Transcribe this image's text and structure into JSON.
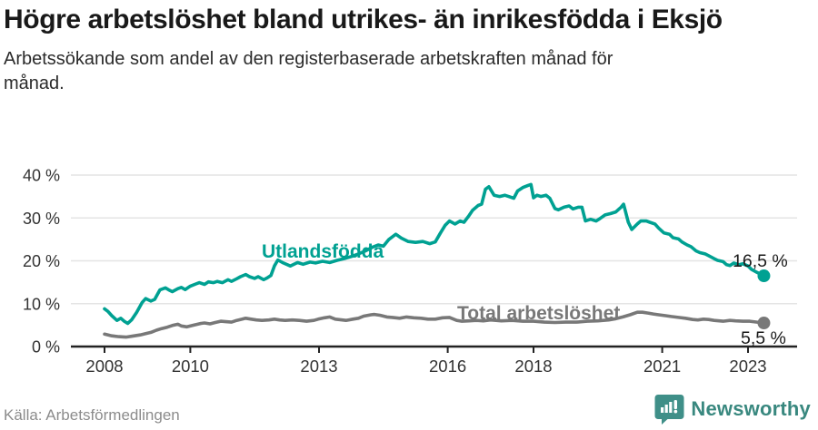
{
  "header": {
    "title": "Högre arbetslöshet bland utrikes- än inrikesfödda i Eksjö",
    "subtitle": "Arbetssökande som andel av den registerbaserade arbetskraften månad för månad."
  },
  "footer": {
    "source": "Källa: Arbetsförmedlingen",
    "brand": "Newsworthy"
  },
  "colors": {
    "accent_teal": "#00a192",
    "line_gray": "#787878",
    "grid": "#e4e4e4",
    "axis": "#222222",
    "tick_label": "#333333",
    "annotation": "#1a1a1a",
    "logo_teal": "#3f8f88"
  },
  "chart_data": {
    "type": "line",
    "title": "Högre arbetslöshet bland utrikes- än inrikesfödda i Eksjö",
    "subtitle": "Arbetssökande som andel av den registerbaserade arbetskraften månad för månad.",
    "source": "Källa: Arbetsförmedlingen",
    "xlabel": "",
    "ylabel": "",
    "grid": true,
    "legend_position": "inline-labels",
    "ylim": [
      0,
      40
    ],
    "xlim": [
      2007.2,
      2024.2
    ],
    "y_ticks": [
      {
        "value": 0,
        "label": "0 %"
      },
      {
        "value": 10,
        "label": "10 %"
      },
      {
        "value": 20,
        "label": "20 %"
      },
      {
        "value": 30,
        "label": "30 %"
      },
      {
        "value": 40,
        "label": "40 %"
      }
    ],
    "x_ticks": [
      {
        "value": 2008,
        "label": "2008"
      },
      {
        "value": 2010,
        "label": "2010"
      },
      {
        "value": 2013,
        "label": "2013"
      },
      {
        "value": 2016,
        "label": "2016"
      },
      {
        "value": 2018,
        "label": "2018"
      },
      {
        "value": 2021,
        "label": "2021"
      },
      {
        "value": 2023,
        "label": "2023"
      }
    ],
    "series": [
      {
        "name": "Utlandsfödda",
        "color": "#00a192",
        "end_label": "16,5 %",
        "end_value": 16.5,
        "points": [
          [
            2008.0,
            8.8
          ],
          [
            2008.08,
            8.2
          ],
          [
            2008.17,
            7.2
          ],
          [
            2008.29,
            6.1
          ],
          [
            2008.38,
            6.6
          ],
          [
            2008.46,
            5.9
          ],
          [
            2008.54,
            5.4
          ],
          [
            2008.63,
            6.2
          ],
          [
            2008.75,
            8.0
          ],
          [
            2008.88,
            10.3
          ],
          [
            2008.96,
            11.2
          ],
          [
            2009.08,
            10.6
          ],
          [
            2009.17,
            11.0
          ],
          [
            2009.29,
            13.2
          ],
          [
            2009.42,
            13.7
          ],
          [
            2009.5,
            13.2
          ],
          [
            2009.58,
            12.8
          ],
          [
            2009.71,
            13.5
          ],
          [
            2009.79,
            13.8
          ],
          [
            2009.88,
            13.3
          ],
          [
            2010.0,
            14.1
          ],
          [
            2010.13,
            14.6
          ],
          [
            2010.21,
            14.9
          ],
          [
            2010.33,
            14.5
          ],
          [
            2010.42,
            15.1
          ],
          [
            2010.54,
            14.9
          ],
          [
            2010.63,
            15.2
          ],
          [
            2010.75,
            14.9
          ],
          [
            2010.88,
            15.6
          ],
          [
            2010.96,
            15.2
          ],
          [
            2011.08,
            15.8
          ],
          [
            2011.17,
            16.3
          ],
          [
            2011.29,
            16.8
          ],
          [
            2011.38,
            16.3
          ],
          [
            2011.5,
            15.9
          ],
          [
            2011.58,
            16.3
          ],
          [
            2011.71,
            15.6
          ],
          [
            2011.79,
            16.0
          ],
          [
            2011.88,
            16.6
          ],
          [
            2011.96,
            18.8
          ],
          [
            2012.04,
            20.2
          ],
          [
            2012.17,
            19.5
          ],
          [
            2012.33,
            18.8
          ],
          [
            2012.5,
            19.6
          ],
          [
            2012.63,
            19.2
          ],
          [
            2012.79,
            19.7
          ],
          [
            2012.92,
            19.5
          ],
          [
            2013.08,
            19.9
          ],
          [
            2013.25,
            19.6
          ],
          [
            2013.42,
            20.1
          ],
          [
            2013.58,
            20.5
          ],
          [
            2013.75,
            21.0
          ],
          [
            2013.92,
            21.6
          ],
          [
            2014.08,
            22.3
          ],
          [
            2014.25,
            23.2
          ],
          [
            2014.38,
            23.7
          ],
          [
            2014.5,
            23.4
          ],
          [
            2014.63,
            25.0
          ],
          [
            2014.79,
            26.2
          ],
          [
            2014.92,
            25.3
          ],
          [
            2015.08,
            24.5
          ],
          [
            2015.25,
            24.3
          ],
          [
            2015.42,
            24.5
          ],
          [
            2015.58,
            24.0
          ],
          [
            2015.71,
            24.4
          ],
          [
            2015.83,
            26.5
          ],
          [
            2015.94,
            28.3
          ],
          [
            2016.04,
            29.3
          ],
          [
            2016.17,
            28.6
          ],
          [
            2016.29,
            29.3
          ],
          [
            2016.38,
            29.0
          ],
          [
            2016.5,
            30.6
          ],
          [
            2016.58,
            31.8
          ],
          [
            2016.71,
            32.9
          ],
          [
            2016.79,
            33.2
          ],
          [
            2016.88,
            36.7
          ],
          [
            2016.96,
            37.3
          ],
          [
            2017.08,
            35.3
          ],
          [
            2017.21,
            35.0
          ],
          [
            2017.33,
            35.3
          ],
          [
            2017.42,
            35.0
          ],
          [
            2017.54,
            34.6
          ],
          [
            2017.63,
            36.3
          ],
          [
            2017.75,
            37.1
          ],
          [
            2017.88,
            37.6
          ],
          [
            2017.94,
            37.8
          ],
          [
            2018.0,
            34.7
          ],
          [
            2018.08,
            35.3
          ],
          [
            2018.17,
            35.0
          ],
          [
            2018.29,
            35.3
          ],
          [
            2018.38,
            34.6
          ],
          [
            2018.5,
            32.2
          ],
          [
            2018.58,
            31.9
          ],
          [
            2018.71,
            32.5
          ],
          [
            2018.83,
            32.8
          ],
          [
            2018.92,
            32.1
          ],
          [
            2019.04,
            32.5
          ],
          [
            2019.13,
            32.5
          ],
          [
            2019.21,
            29.3
          ],
          [
            2019.33,
            29.7
          ],
          [
            2019.46,
            29.3
          ],
          [
            2019.54,
            29.8
          ],
          [
            2019.67,
            30.7
          ],
          [
            2019.79,
            31.0
          ],
          [
            2019.92,
            31.4
          ],
          [
            2020.04,
            32.5
          ],
          [
            2020.1,
            33.2
          ],
          [
            2020.21,
            29.0
          ],
          [
            2020.29,
            27.3
          ],
          [
            2020.42,
            28.6
          ],
          [
            2020.5,
            29.3
          ],
          [
            2020.63,
            29.3
          ],
          [
            2020.71,
            29.0
          ],
          [
            2020.83,
            28.6
          ],
          [
            2020.92,
            27.6
          ],
          [
            2021.04,
            26.5
          ],
          [
            2021.17,
            26.2
          ],
          [
            2021.25,
            25.4
          ],
          [
            2021.38,
            25.1
          ],
          [
            2021.46,
            24.4
          ],
          [
            2021.58,
            23.7
          ],
          [
            2021.67,
            23.3
          ],
          [
            2021.79,
            22.3
          ],
          [
            2021.88,
            21.9
          ],
          [
            2022.0,
            21.6
          ],
          [
            2022.08,
            21.2
          ],
          [
            2022.21,
            20.5
          ],
          [
            2022.29,
            20.1
          ],
          [
            2022.42,
            19.8
          ],
          [
            2022.5,
            19.1
          ],
          [
            2022.58,
            18.9
          ],
          [
            2022.67,
            19.5
          ],
          [
            2022.79,
            19.1
          ],
          [
            2022.88,
            19.3
          ],
          [
            2023.0,
            18.8
          ],
          [
            2023.08,
            18.0
          ],
          [
            2023.21,
            17.3
          ],
          [
            2023.37,
            16.5
          ]
        ]
      },
      {
        "name": "Total arbetslöshet",
        "color": "#787878",
        "end_label": "5,5 %",
        "end_value": 5.5,
        "points": [
          [
            2008.0,
            2.9
          ],
          [
            2008.17,
            2.5
          ],
          [
            2008.33,
            2.3
          ],
          [
            2008.5,
            2.2
          ],
          [
            2008.63,
            2.4
          ],
          [
            2008.83,
            2.7
          ],
          [
            2008.96,
            3.0
          ],
          [
            2009.08,
            3.3
          ],
          [
            2009.21,
            3.8
          ],
          [
            2009.33,
            4.2
          ],
          [
            2009.46,
            4.5
          ],
          [
            2009.58,
            4.9
          ],
          [
            2009.71,
            5.2
          ],
          [
            2009.79,
            4.8
          ],
          [
            2009.92,
            4.6
          ],
          [
            2010.08,
            5.0
          ],
          [
            2010.25,
            5.4
          ],
          [
            2010.33,
            5.5
          ],
          [
            2010.46,
            5.3
          ],
          [
            2010.58,
            5.6
          ],
          [
            2010.71,
            5.9
          ],
          [
            2010.83,
            5.8
          ],
          [
            2010.96,
            5.7
          ],
          [
            2011.08,
            6.1
          ],
          [
            2011.21,
            6.4
          ],
          [
            2011.29,
            6.6
          ],
          [
            2011.42,
            6.4
          ],
          [
            2011.54,
            6.2
          ],
          [
            2011.67,
            6.1
          ],
          [
            2011.83,
            6.2
          ],
          [
            2011.96,
            6.4
          ],
          [
            2012.08,
            6.2
          ],
          [
            2012.21,
            6.1
          ],
          [
            2012.38,
            6.2
          ],
          [
            2012.54,
            6.1
          ],
          [
            2012.71,
            5.9
          ],
          [
            2012.88,
            6.1
          ],
          [
            2012.98,
            6.4
          ],
          [
            2013.13,
            6.7
          ],
          [
            2013.25,
            6.9
          ],
          [
            2013.38,
            6.4
          ],
          [
            2013.54,
            6.2
          ],
          [
            2013.63,
            6.1
          ],
          [
            2013.79,
            6.4
          ],
          [
            2013.92,
            6.6
          ],
          [
            2014.04,
            7.1
          ],
          [
            2014.21,
            7.4
          ],
          [
            2014.29,
            7.5
          ],
          [
            2014.42,
            7.3
          ],
          [
            2014.58,
            6.9
          ],
          [
            2014.71,
            6.8
          ],
          [
            2014.88,
            6.6
          ],
          [
            2015.04,
            6.9
          ],
          [
            2015.21,
            6.7
          ],
          [
            2015.38,
            6.6
          ],
          [
            2015.54,
            6.4
          ],
          [
            2015.71,
            6.4
          ],
          [
            2015.88,
            6.7
          ],
          [
            2016.04,
            6.8
          ],
          [
            2016.21,
            6.1
          ],
          [
            2016.33,
            5.9
          ],
          [
            2016.5,
            6.0
          ],
          [
            2016.67,
            6.1
          ],
          [
            2016.83,
            6.0
          ],
          [
            2017.0,
            6.2
          ],
          [
            2017.25,
            6.0
          ],
          [
            2017.5,
            6.1
          ],
          [
            2017.75,
            5.9
          ],
          [
            2018.0,
            5.9
          ],
          [
            2018.25,
            5.7
          ],
          [
            2018.5,
            5.6
          ],
          [
            2018.75,
            5.7
          ],
          [
            2019.0,
            5.7
          ],
          [
            2019.25,
            5.9
          ],
          [
            2019.5,
            6.0
          ],
          [
            2019.75,
            6.2
          ],
          [
            2019.92,
            6.5
          ],
          [
            2020.08,
            6.9
          ],
          [
            2020.25,
            7.4
          ],
          [
            2020.42,
            8.0
          ],
          [
            2020.54,
            8.0
          ],
          [
            2020.67,
            7.8
          ],
          [
            2020.79,
            7.6
          ],
          [
            2020.92,
            7.4
          ],
          [
            2021.08,
            7.2
          ],
          [
            2021.21,
            7.0
          ],
          [
            2021.38,
            6.8
          ],
          [
            2021.54,
            6.6
          ],
          [
            2021.71,
            6.3
          ],
          [
            2021.83,
            6.2
          ],
          [
            2021.96,
            6.4
          ],
          [
            2022.08,
            6.3
          ],
          [
            2022.21,
            6.1
          ],
          [
            2022.42,
            5.9
          ],
          [
            2022.58,
            6.1
          ],
          [
            2022.71,
            6.0
          ],
          [
            2022.88,
            5.9
          ],
          [
            2023.04,
            5.9
          ],
          [
            2023.21,
            5.7
          ],
          [
            2023.37,
            5.5
          ]
        ]
      }
    ]
  }
}
